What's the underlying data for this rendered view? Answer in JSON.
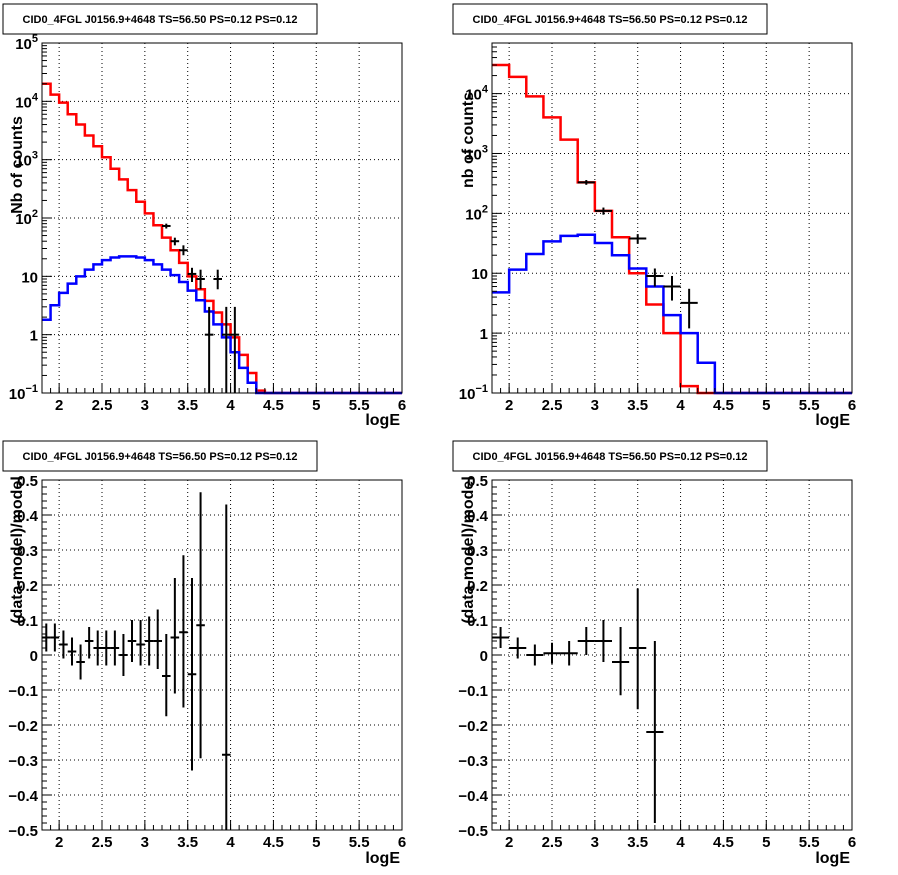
{
  "chart_data": [
    {
      "type": "step-histogram-log",
      "title": "CID0_4FGL J0156.9+4648 TS=56.50 PS=0.12 PS=0.12",
      "xlabel": "logE",
      "ylabel": "Nb of counts",
      "xlim": [
        1.8,
        6.0
      ],
      "ylim": [
        0.1,
        100000
      ],
      "log_y": true,
      "grid": true,
      "x_ticks": [
        {
          "v": 2,
          "label": "2"
        },
        {
          "v": 2.5,
          "label": "2.5"
        },
        {
          "v": 3,
          "label": "3"
        },
        {
          "v": 3.5,
          "label": "3.5"
        },
        {
          "v": 4,
          "label": "4"
        },
        {
          "v": 4.5,
          "label": "4.5"
        },
        {
          "v": 5,
          "label": "5"
        },
        {
          "v": 5.5,
          "label": "5.5"
        },
        {
          "v": 6,
          "label": "6"
        }
      ],
      "y_ticks": [
        {
          "v": 0.1,
          "base": "10",
          "exp": "−1"
        },
        {
          "v": 1,
          "base": "1",
          "exp": ""
        },
        {
          "v": 10,
          "base": "10",
          "exp": ""
        },
        {
          "v": 100,
          "base": "10",
          "exp": "2"
        },
        {
          "v": 1000,
          "base": "10",
          "exp": "3"
        },
        {
          "v": 10000,
          "base": "10",
          "exp": "4"
        },
        {
          "v": 100000,
          "base": "10",
          "exp": "5"
        }
      ],
      "bin_width": 0.1,
      "bin_edges_start": 1.8,
      "series": [
        {
          "color": "#ff0000",
          "values": [
            20000,
            13000,
            9500,
            6000,
            4000,
            2600,
            1700,
            1100,
            700,
            460,
            300,
            190,
            120,
            75,
            46,
            28,
            17,
            10,
            6,
            3.8,
            2.4,
            1.5,
            0.9,
            0.45,
            0.22,
            0.11,
            0.1,
            0.1,
            0.1,
            0.1,
            0.1,
            0.1,
            0.1,
            0.1,
            0.1,
            0.1,
            0.1,
            0.1,
            0.1,
            0.1,
            0.1,
            0.1
          ]
        },
        {
          "color": "#0000ff",
          "values": [
            1.8,
            3.2,
            5.2,
            7.5,
            10,
            13,
            16,
            19,
            21,
            22,
            22,
            21,
            19,
            16,
            13,
            10.5,
            8,
            5.7,
            3.9,
            2.5,
            1.5,
            0.9,
            0.5,
            0.27,
            0.15,
            0.1,
            0.1,
            0.1,
            0.1,
            0.1,
            0.1,
            0.1,
            0.1,
            0.1,
            0.1,
            0.1,
            0.1,
            0.1,
            0.1,
            0.1,
            0.1,
            0.1
          ]
        }
      ],
      "data_points": [
        {
          "x": 3.25,
          "xerr": 0.05,
          "y": 73,
          "ylo": 66,
          "yhi": 80
        },
        {
          "x": 3.35,
          "xerr": 0.05,
          "y": 40,
          "ylo": 34,
          "yhi": 46
        },
        {
          "x": 3.45,
          "xerr": 0.05,
          "y": 28,
          "ylo": 23,
          "yhi": 34
        },
        {
          "x": 3.55,
          "xerr": 0.05,
          "y": 11,
          "ylo": 8,
          "yhi": 14
        },
        {
          "x": 3.65,
          "xerr": 0.05,
          "y": 9,
          "ylo": 6,
          "yhi": 13
        },
        {
          "x": 3.75,
          "xerr": 0.05,
          "y": 1,
          "ylo": 0.1,
          "yhi": 3
        },
        {
          "x": 3.85,
          "xerr": 0.05,
          "y": 9,
          "ylo": 6,
          "yhi": 13
        },
        {
          "x": 3.95,
          "xerr": 0.05,
          "y": 1,
          "ylo": 0.1,
          "yhi": 3
        },
        {
          "x": 4.05,
          "xerr": 0.05,
          "y": 1,
          "ylo": 0.1,
          "yhi": 3
        }
      ]
    },
    {
      "type": "step-histogram-log",
      "title": "CID0_4FGL J0156.9+4648 TS=56.50 PS=0.12 PS=0.12",
      "xlabel": "logE",
      "ylabel": "nb of counts",
      "xlim": [
        1.8,
        6.0
      ],
      "ylim": [
        0.1,
        70000
      ],
      "log_y": true,
      "grid": true,
      "x_ticks": [
        {
          "v": 2,
          "label": "2"
        },
        {
          "v": 2.5,
          "label": "2.5"
        },
        {
          "v": 3,
          "label": "3"
        },
        {
          "v": 3.5,
          "label": "3.5"
        },
        {
          "v": 4,
          "label": "4"
        },
        {
          "v": 4.5,
          "label": "4.5"
        },
        {
          "v": 5,
          "label": "5"
        },
        {
          "v": 5.5,
          "label": "5.5"
        },
        {
          "v": 6,
          "label": "6"
        }
      ],
      "y_ticks": [
        {
          "v": 0.1,
          "base": "10",
          "exp": "−1"
        },
        {
          "v": 1,
          "base": "1",
          "exp": ""
        },
        {
          "v": 10,
          "base": "10",
          "exp": ""
        },
        {
          "v": 100,
          "base": "10",
          "exp": "2"
        },
        {
          "v": 1000,
          "base": "10",
          "exp": "3"
        },
        {
          "v": 10000,
          "base": "10",
          "exp": "4"
        }
      ],
      "bin_width": 0.2,
      "bin_edges_start": 1.8,
      "series": [
        {
          "color": "#ff0000",
          "values": [
            30000,
            19000,
            9000,
            4000,
            1700,
            330,
            110,
            40,
            10,
            3,
            1,
            0.13,
            0.1,
            0.1,
            0.1,
            0.1,
            0.1,
            0.1,
            0.1,
            0.1,
            0.1
          ]
        },
        {
          "color": "#0000ff",
          "values": [
            4.8,
            11.5,
            21,
            34,
            42,
            44,
            32,
            20,
            12,
            6,
            2,
            1,
            0.32,
            0.1,
            0.1,
            0.1,
            0.1,
            0.1,
            0.1,
            0.1,
            0.1
          ]
        }
      ],
      "data_points": [
        {
          "x": 2.9,
          "xerr": 0.1,
          "y": 330,
          "ylo": 300,
          "yhi": 360
        },
        {
          "x": 3.1,
          "xerr": 0.1,
          "y": 110,
          "ylo": 95,
          "yhi": 125
        },
        {
          "x": 3.5,
          "xerr": 0.1,
          "y": 38,
          "ylo": 31,
          "yhi": 45
        },
        {
          "x": 3.7,
          "xerr": 0.1,
          "y": 9,
          "ylo": 6,
          "yhi": 12
        },
        {
          "x": 3.9,
          "xerr": 0.1,
          "y": 6,
          "ylo": 3.5,
          "yhi": 9
        },
        {
          "x": 4.1,
          "xerr": 0.1,
          "y": 3.2,
          "ylo": 1.2,
          "yhi": 5.5
        }
      ]
    },
    {
      "type": "scatter-errorbar",
      "title": "CID0_4FGL J0156.9+4648 TS=56.50 PS=0.12 PS=0.12",
      "xlabel": "logE",
      "ylabel": "(data-model)/model",
      "xlim": [
        1.8,
        6.0
      ],
      "ylim": [
        -0.5,
        0.5
      ],
      "log_y": false,
      "grid": true,
      "x_ticks": [
        {
          "v": 2,
          "label": "2"
        },
        {
          "v": 2.5,
          "label": "2.5"
        },
        {
          "v": 3,
          "label": "3"
        },
        {
          "v": 3.5,
          "label": "3.5"
        },
        {
          "v": 4,
          "label": "4"
        },
        {
          "v": 4.5,
          "label": "4.5"
        },
        {
          "v": 5,
          "label": "5"
        },
        {
          "v": 5.5,
          "label": "5.5"
        },
        {
          "v": 6,
          "label": "6"
        }
      ],
      "y_ticks": [
        {
          "v": -0.5,
          "label": "−0.5"
        },
        {
          "v": -0.4,
          "label": "−0.4"
        },
        {
          "v": -0.3,
          "label": "−0.3"
        },
        {
          "v": -0.2,
          "label": "−0.2"
        },
        {
          "v": -0.1,
          "label": "−0.1"
        },
        {
          "v": 0,
          "label": "0"
        },
        {
          "v": 0.1,
          "label": "0.1"
        },
        {
          "v": 0.2,
          "label": "0.2"
        },
        {
          "v": 0.3,
          "label": "0.3"
        },
        {
          "v": 0.4,
          "label": "0.4"
        },
        {
          "v": 0.5,
          "label": "0.5"
        }
      ],
      "data_points": [
        {
          "x": 1.85,
          "xerr": 0.05,
          "y": 0.05,
          "ylo": 0.01,
          "yhi": 0.09
        },
        {
          "x": 1.95,
          "xerr": 0.05,
          "y": 0.05,
          "ylo": 0.01,
          "yhi": 0.09
        },
        {
          "x": 2.05,
          "xerr": 0.05,
          "y": 0.03,
          "ylo": -0.01,
          "yhi": 0.07
        },
        {
          "x": 2.15,
          "xerr": 0.05,
          "y": 0.01,
          "ylo": -0.03,
          "yhi": 0.05
        },
        {
          "x": 2.25,
          "xerr": 0.05,
          "y": -0.02,
          "ylo": -0.07,
          "yhi": 0.03
        },
        {
          "x": 2.35,
          "xerr": 0.05,
          "y": 0.04,
          "ylo": -0.01,
          "yhi": 0.08
        },
        {
          "x": 2.45,
          "xerr": 0.05,
          "y": 0.02,
          "ylo": -0.03,
          "yhi": 0.07
        },
        {
          "x": 2.55,
          "xerr": 0.05,
          "y": 0.02,
          "ylo": -0.03,
          "yhi": 0.07
        },
        {
          "x": 2.65,
          "xerr": 0.05,
          "y": 0.02,
          "ylo": -0.03,
          "yhi": 0.07
        },
        {
          "x": 2.75,
          "xerr": 0.05,
          "y": 0.0,
          "ylo": -0.06,
          "yhi": 0.06
        },
        {
          "x": 2.85,
          "xerr": 0.05,
          "y": 0.04,
          "ylo": -0.02,
          "yhi": 0.1
        },
        {
          "x": 2.95,
          "xerr": 0.05,
          "y": 0.03,
          "ylo": -0.03,
          "yhi": 0.1
        },
        {
          "x": 3.05,
          "xerr": 0.05,
          "y": 0.04,
          "ylo": -0.03,
          "yhi": 0.11
        },
        {
          "x": 3.15,
          "xerr": 0.05,
          "y": 0.04,
          "ylo": -0.04,
          "yhi": 0.13
        },
        {
          "x": 3.25,
          "xerr": 0.05,
          "y": -0.06,
          "ylo": -0.175,
          "yhi": 0.06
        },
        {
          "x": 3.35,
          "xerr": 0.05,
          "y": 0.05,
          "ylo": -0.11,
          "yhi": 0.22
        },
        {
          "x": 3.45,
          "xerr": 0.05,
          "y": 0.065,
          "ylo": -0.15,
          "yhi": 0.285
        },
        {
          "x": 3.55,
          "xerr": 0.05,
          "y": -0.055,
          "ylo": -0.33,
          "yhi": 0.22
        },
        {
          "x": 3.65,
          "xerr": 0.05,
          "y": 0.085,
          "ylo": -0.295,
          "yhi": 0.465
        },
        {
          "x": 3.95,
          "xerr": 0.05,
          "y": -0.285,
          "ylo": -1.0,
          "yhi": 0.43
        }
      ]
    },
    {
      "type": "scatter-errorbar",
      "title": "CID0_4FGL J0156.9+4648 TS=56.50 PS=0.12 PS=0.12",
      "xlabel": "logE",
      "ylabel": "(data-model)/model",
      "xlim": [
        1.8,
        6.0
      ],
      "ylim": [
        -0.5,
        0.5
      ],
      "log_y": false,
      "grid": true,
      "x_ticks": [
        {
          "v": 2,
          "label": "2"
        },
        {
          "v": 2.5,
          "label": "2.5"
        },
        {
          "v": 3,
          "label": "3"
        },
        {
          "v": 3.5,
          "label": "3.5"
        },
        {
          "v": 4,
          "label": "4"
        },
        {
          "v": 4.5,
          "label": "4.5"
        },
        {
          "v": 5,
          "label": "5"
        },
        {
          "v": 5.5,
          "label": "5.5"
        },
        {
          "v": 6,
          "label": "6"
        }
      ],
      "y_ticks": [
        {
          "v": -0.5,
          "label": "−0.5"
        },
        {
          "v": -0.4,
          "label": "−0.4"
        },
        {
          "v": -0.3,
          "label": "−0.3"
        },
        {
          "v": -0.2,
          "label": "−0.2"
        },
        {
          "v": -0.1,
          "label": "−0.1"
        },
        {
          "v": 0,
          "label": "0"
        },
        {
          "v": 0.1,
          "label": "0.1"
        },
        {
          "v": 0.2,
          "label": "0.2"
        },
        {
          "v": 0.3,
          "label": "0.3"
        },
        {
          "v": 0.4,
          "label": "0.4"
        },
        {
          "v": 0.5,
          "label": "0.5"
        }
      ],
      "data_points": [
        {
          "x": 1.9,
          "xerr": 0.1,
          "y": 0.05,
          "ylo": 0.02,
          "yhi": 0.08
        },
        {
          "x": 2.1,
          "xerr": 0.1,
          "y": 0.02,
          "ylo": -0.01,
          "yhi": 0.05
        },
        {
          "x": 2.3,
          "xerr": 0.1,
          "y": 0.0,
          "ylo": -0.03,
          "yhi": 0.03
        },
        {
          "x": 2.5,
          "xerr": 0.1,
          "y": 0.005,
          "ylo": -0.025,
          "yhi": 0.035
        },
        {
          "x": 2.7,
          "xerr": 0.1,
          "y": 0.005,
          "ylo": -0.03,
          "yhi": 0.04
        },
        {
          "x": 2.9,
          "xerr": 0.1,
          "y": 0.04,
          "ylo": 0.0,
          "yhi": 0.08
        },
        {
          "x": 3.1,
          "xerr": 0.1,
          "y": 0.04,
          "ylo": -0.02,
          "yhi": 0.1
        },
        {
          "x": 3.3,
          "xerr": 0.1,
          "y": -0.02,
          "ylo": -0.115,
          "yhi": 0.08
        },
        {
          "x": 3.5,
          "xerr": 0.1,
          "y": 0.02,
          "ylo": -0.155,
          "yhi": 0.19
        },
        {
          "x": 3.7,
          "xerr": 0.1,
          "y": -0.22,
          "ylo": -0.48,
          "yhi": 0.04
        }
      ]
    }
  ]
}
